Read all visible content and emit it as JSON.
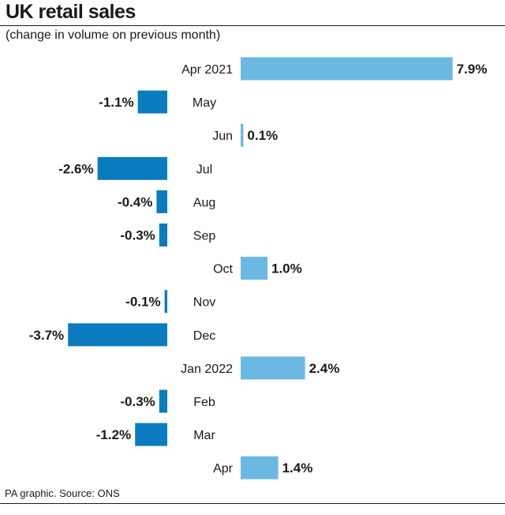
{
  "chart_data": {
    "type": "bar",
    "orientation": "horizontal",
    "title": "UK retail sales",
    "subtitle": "(change in volume on previous month)",
    "source": "PA graphic. Source: ONS",
    "categories": [
      "Apr 2021",
      "May",
      "Jun",
      "Jul",
      "Aug",
      "Sep",
      "Oct",
      "Nov",
      "Dec",
      "Jan 2022",
      "Feb",
      "Mar",
      "Apr"
    ],
    "values": [
      7.9,
      -1.1,
      0.1,
      -2.6,
      -0.4,
      -0.3,
      1.0,
      -0.1,
      -3.7,
      2.4,
      -0.3,
      -1.2,
      1.4
    ],
    "value_labels": [
      "7.9%",
      "-1.1%",
      "0.1%",
      "-2.6%",
      "-0.4%",
      "-0.3%",
      "1.0%",
      "-0.1%",
      "-3.7%",
      "2.4%",
      "-0.3%",
      "-1.2%",
      "1.4%"
    ],
    "colors": {
      "positive": "#6bb8e2",
      "negative": "#0b7bbf"
    }
  }
}
